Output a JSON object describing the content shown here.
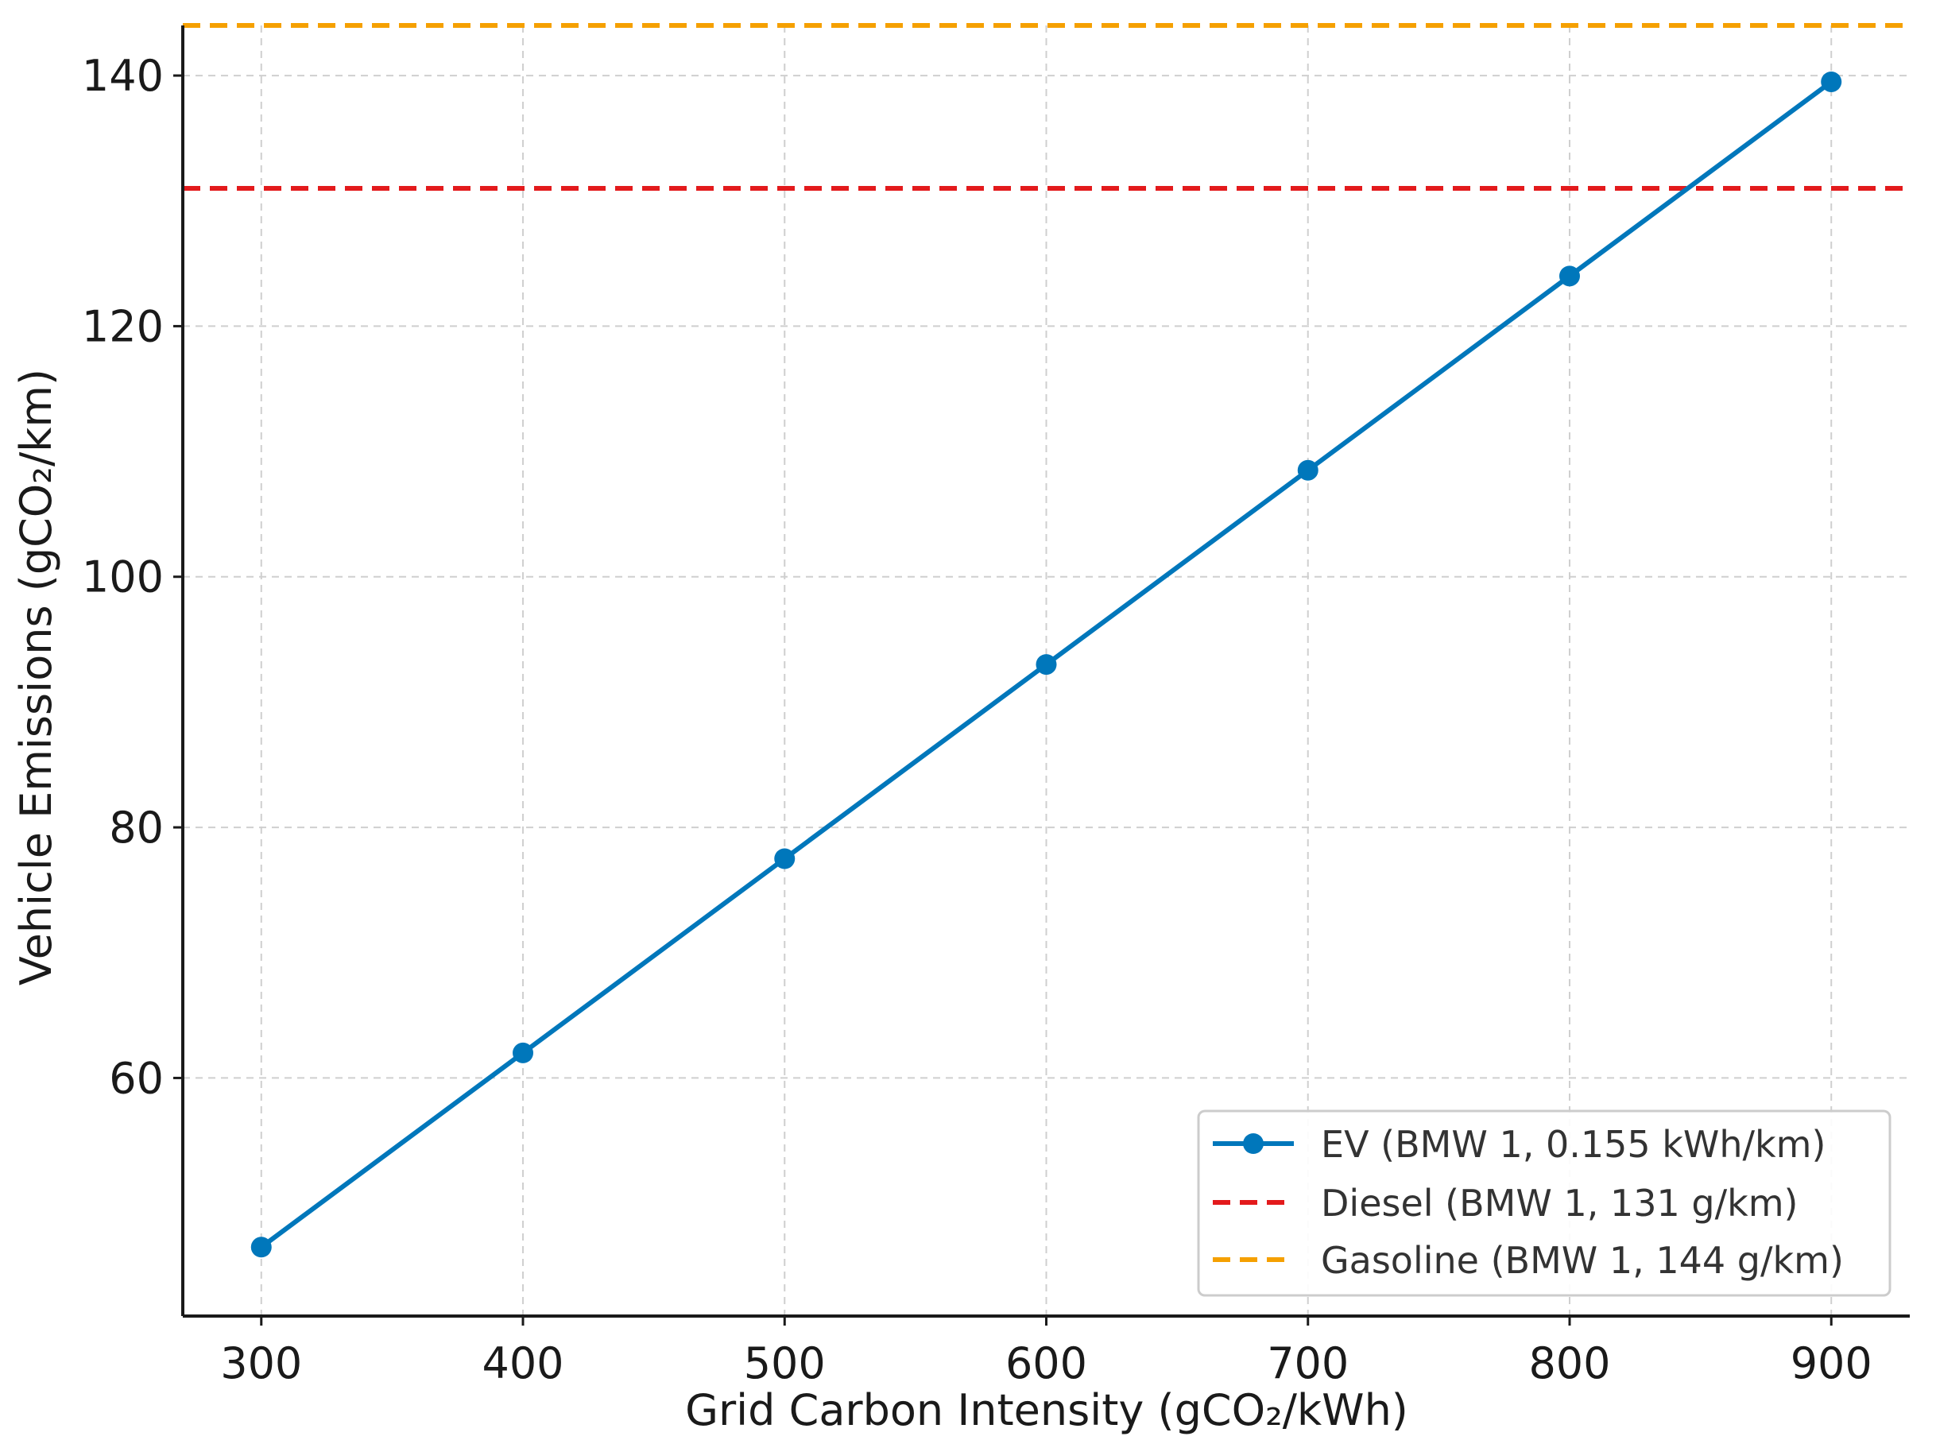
{
  "chart_data": {
    "type": "line",
    "title": "",
    "xlabel": "Grid Carbon Intensity (gCO₂/kWh)",
    "ylabel": "Vehicle Emissions (gCO₂/km)",
    "xlim": [
      270,
      930
    ],
    "ylim": [
      41,
      144
    ],
    "xticks": [
      300,
      400,
      500,
      600,
      700,
      800,
      900
    ],
    "yticks": [
      60,
      80,
      100,
      120,
      140
    ],
    "grid": true,
    "legend_position": "lower-right",
    "series": [
      {
        "name": "EV (BMW 1, 0.155 kWh/km)",
        "kind": "line-marker",
        "color": "#0077bb",
        "x": [
          300,
          400,
          500,
          600,
          700,
          800,
          900
        ],
        "y": [
          46.5,
          62.0,
          77.5,
          93.0,
          108.5,
          124.0,
          139.5
        ]
      },
      {
        "name": "Diesel (BMW 1, 131 g/km)",
        "kind": "hline-dashed",
        "color": "#e31a1c",
        "y": 131
      },
      {
        "name": "Gasoline (BMW 1, 144 g/km)",
        "kind": "hline-dashed",
        "color": "#f5a000",
        "y": 144
      }
    ]
  }
}
